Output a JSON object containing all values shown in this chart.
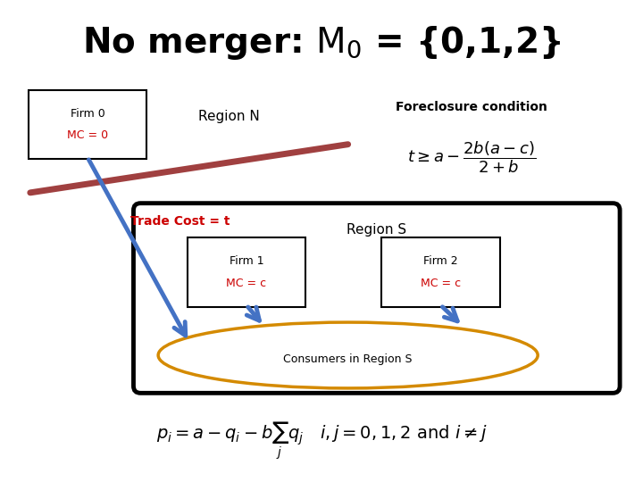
{
  "bg_color": "#ffffff",
  "title": "No merger: $\\mathrm{M}_0$ = {0,1,2}",
  "title_fontsize": 28,
  "arrow_color": "#4472C4",
  "trade_line_color": "#A04040",
  "mc_text_color": "#CC0000",
  "trade_cost_color": "#CC0000",
  "consumers_ellipse_color": "#D48A00",
  "firm0_label": "Firm 0",
  "firm0_mc": "MC = 0",
  "firm1_label": "Firm 1",
  "firm1_mc": "MC = c",
  "firm2_label": "Firm 2",
  "firm2_mc": "MC = c",
  "region_n_label": "Region N",
  "region_s_label": "Region S",
  "consumers_label": "Consumers in Region S",
  "foreclosure_label": "Foreclosure condition",
  "trade_cost_label": "Trade Cost = t",
  "formula": "$p_i = a - q_i - b\\sum_j q_j \\quad i, j = 0,1,2 \\text{ and } i \\neq j$"
}
